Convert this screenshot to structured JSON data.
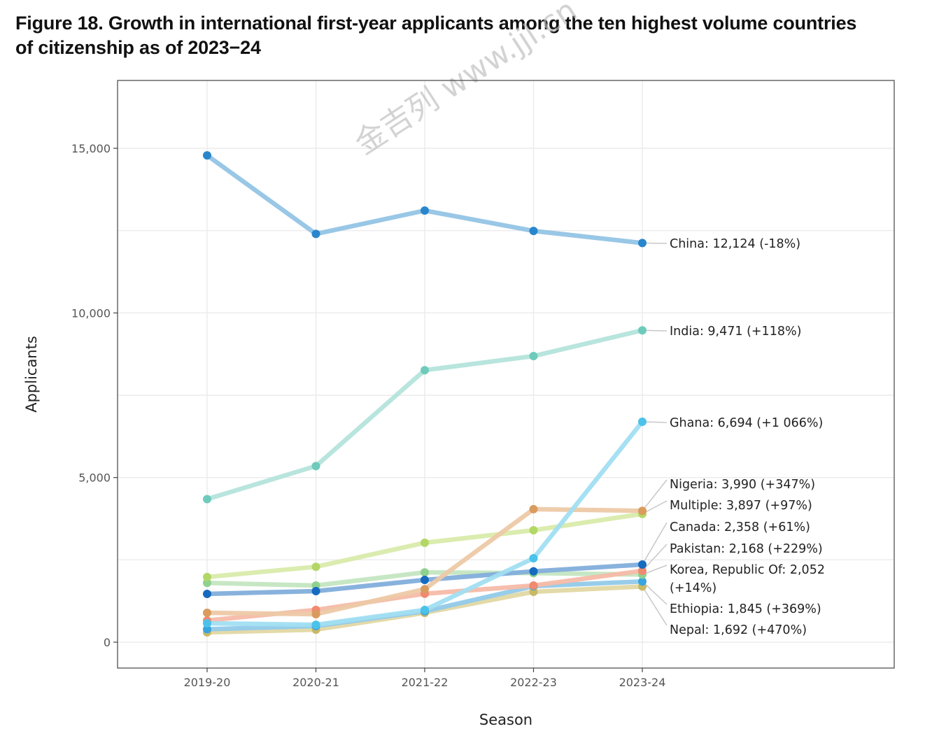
{
  "figure": {
    "title_line1": "Figure 18. Growth in international first-year applicants among the ten highest volume countries",
    "title_line2": "of citizenship as of 2023−24",
    "watermark": "金吉列 www.jjl.cn"
  },
  "chart_data": {
    "type": "line",
    "title": "Figure 18. Growth in international first-year applicants among the ten highest volume countries of citizenship as of 2023−24",
    "xlabel": "Season",
    "ylabel": "Applicants",
    "x": [
      "2019-20",
      "2020-21",
      "2021-22",
      "2022-23",
      "2023-24"
    ],
    "ylim": [
      -800,
      17100
    ],
    "yticks": [
      0,
      5000,
      10000,
      15000
    ],
    "ytick_labels": [
      "0",
      "5,000",
      "10,000",
      "15,000"
    ],
    "grid": true,
    "legend": "direct labels at right end of each line",
    "series": [
      {
        "name": "China",
        "label": "China: 12,124 (-18%)",
        "values": [
          14785,
          12400,
          13110,
          12490,
          12124
        ],
        "point_color": "#2a86cc",
        "line_color": "#93c4e5"
      },
      {
        "name": "India",
        "label": "India: 9,471 (+118%)",
        "values": [
          4344,
          5350,
          8260,
          8690,
          9471
        ],
        "point_color": "#6ecbbb",
        "line_color": "#b4e4db"
      },
      {
        "name": "Ghana",
        "label": "Ghana: 6,694 (+1 066%)",
        "values": [
          574,
          530,
          980,
          2550,
          6694
        ],
        "point_color": "#4bc2ea",
        "line_color": "#a1def2"
      },
      {
        "name": "Nigeria",
        "label": "Nigeria: 3,990 (+347%)",
        "values": [
          893,
          850,
          1610,
          4040,
          3990
        ],
        "point_color": "#da9b5f",
        "line_color": "#edc9a7"
      },
      {
        "name": "Multiple",
        "label": "Multiple: 3,897 (+97%)",
        "values": [
          1978,
          2290,
          3020,
          3400,
          3897
        ],
        "point_color": "#b3d766",
        "line_color": "#d9ebab"
      },
      {
        "name": "Canada",
        "label": "Canada: 2,358 (+61%)",
        "values": [
          1465,
          1550,
          1890,
          2150,
          2358
        ],
        "point_color": "#176bbf",
        "line_color": "#82aedb"
      },
      {
        "name": "Pakistan",
        "label": "Pakistan: 2,168 (+229%)",
        "values": [
          659,
          980,
          1470,
          1720,
          2168
        ],
        "point_color": "#f08a70",
        "line_color": "#f6bba8"
      },
      {
        "name": "Korea, Republic Of",
        "label": "Korea, Republic Of: 2,052",
        "label2": "(+14%)",
        "values": [
          1800,
          1720,
          2120,
          2100,
          2052
        ],
        "point_color": "#8fd18f",
        "line_color": "#c4e6c1"
      },
      {
        "name": "Ethiopia",
        "label": "Ethiopia: 1,845 (+369%)",
        "values": [
          393,
          490,
          940,
          1700,
          1845
        ],
        "point_color": "#39a5de",
        "line_color": "#92cae9"
      },
      {
        "name": "Nepal",
        "label": "Nepal: 1,692 (+470%)",
        "values": [
          297,
          380,
          890,
          1530,
          1692
        ],
        "point_color": "#c9b966",
        "line_color": "#e2d8a4"
      }
    ]
  }
}
